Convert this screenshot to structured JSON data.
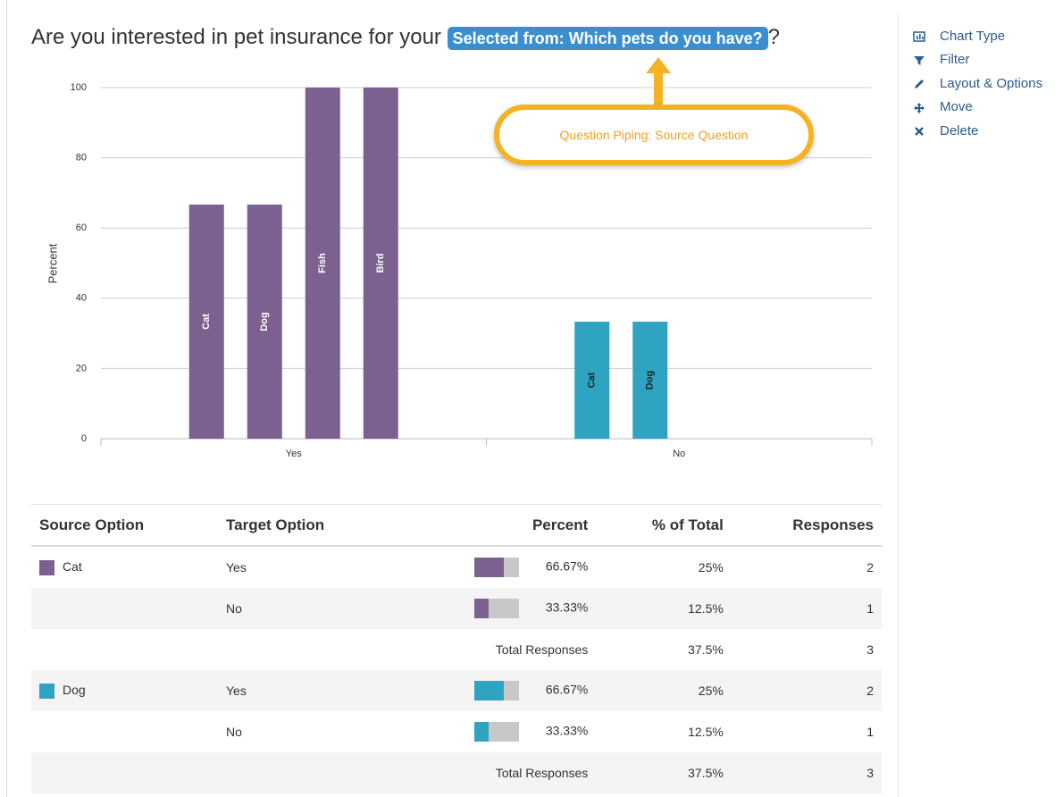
{
  "header": {
    "title": "Are you interested in pet insurance for your",
    "piped": "Selected from: Which pets do you have?",
    "title_suffix": "?"
  },
  "callout": {
    "text": "Question Piping: Source Question"
  },
  "menu": {
    "items": [
      "Chart Type",
      "Filter",
      "Layout & Options",
      "Move",
      "Delete"
    ]
  },
  "chart_data": {
    "type": "bar",
    "categories": [
      "Yes",
      "No"
    ],
    "colors": [
      "#7b6190",
      "#2ea3c2"
    ],
    "series": [
      {
        "name": "Cat",
        "values": [
          66.67,
          33.33
        ]
      },
      {
        "name": "Dog",
        "values": [
          66.67,
          33.33
        ]
      },
      {
        "name": "Fish",
        "values": [
          100,
          null
        ]
      },
      {
        "name": "Bird",
        "values": [
          100,
          null
        ]
      }
    ],
    "y_label": "Percent",
    "ylim": [
      0,
      100
    ],
    "yticks": [
      0,
      20,
      40,
      60,
      80,
      100
    ],
    "grid": true
  },
  "table": {
    "columns": [
      "Source Option",
      "Target Option",
      "Percent",
      "% of Total",
      "Responses"
    ],
    "groups": [
      {
        "source": "Cat",
        "color": "#7b6190",
        "rows": [
          {
            "target": "Yes",
            "percent": 66.67,
            "percent_label": "66.67%",
            "of_total": "25%",
            "responses": 2
          },
          {
            "target": "No",
            "percent": 33.33,
            "percent_label": "33.33%",
            "of_total": "12.5%",
            "responses": 1
          }
        ],
        "total": {
          "label": "Total Responses",
          "of_total": "37.5%",
          "responses": 3
        }
      },
      {
        "source": "Dog",
        "color": "#2ea3c2",
        "rows": [
          {
            "target": "Yes",
            "percent": 66.67,
            "percent_label": "66.67%",
            "of_total": "25%",
            "responses": 2
          },
          {
            "target": "No",
            "percent": 33.33,
            "percent_label": "33.33%",
            "of_total": "12.5%",
            "responses": 1
          }
        ],
        "total": {
          "label": "Total Responses",
          "of_total": "37.5%",
          "responses": 3
        }
      }
    ]
  }
}
